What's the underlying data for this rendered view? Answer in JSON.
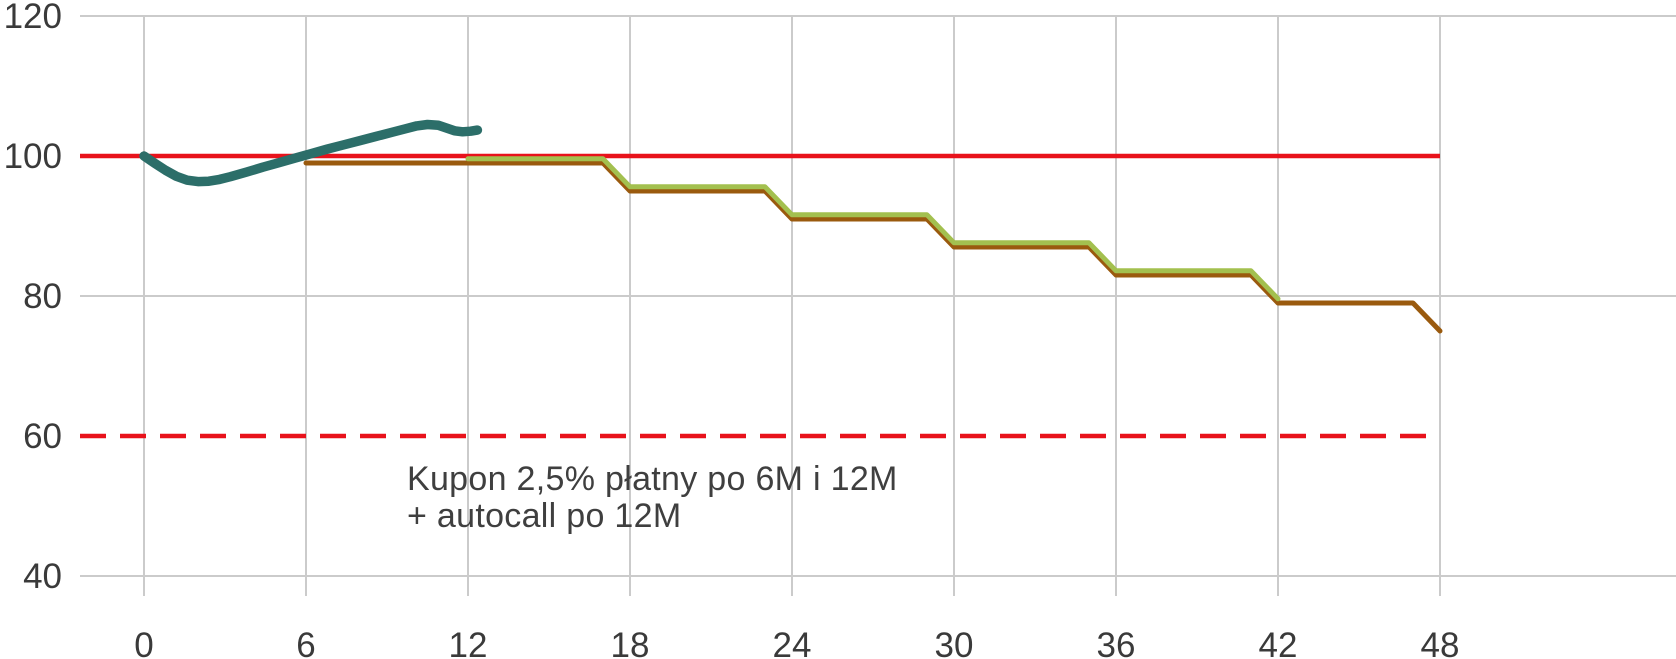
{
  "chart_data": {
    "type": "line",
    "title": "",
    "xlabel": "",
    "ylabel": "",
    "x_axis": {
      "unit": "months",
      "ticks": [
        0,
        6,
        12,
        18,
        24,
        30,
        36,
        42,
        48
      ],
      "range": [
        0,
        48
      ]
    },
    "y_axis": {
      "ticks": [
        120,
        100,
        80,
        60,
        40
      ],
      "range": [
        40,
        120
      ],
      "gridline_values": [
        120,
        80,
        40
      ]
    },
    "grid": true,
    "legend": "none",
    "reference_lines": [
      {
        "name": "barrier-100",
        "value": 100,
        "style": "solid",
        "color": "#e8121b",
        "width": 4.5
      },
      {
        "name": "barrier-60",
        "value": 60,
        "style": "dashed",
        "color": "#e8121b",
        "width": 4.5,
        "dash": [
          26,
          14
        ]
      }
    ],
    "series": [
      {
        "name": "scenario-path-brown",
        "color": "#9a5a0e",
        "stroke_width": 5,
        "points": [
          [
            6,
            99
          ],
          [
            17,
            99
          ],
          [
            18,
            95
          ],
          [
            23,
            95
          ],
          [
            24,
            91
          ],
          [
            29,
            91
          ],
          [
            30,
            87
          ],
          [
            35,
            87
          ],
          [
            36,
            83
          ],
          [
            41,
            83
          ],
          [
            42,
            79
          ],
          [
            47,
            79
          ],
          [
            48,
            75
          ]
        ]
      },
      {
        "name": "scenario-path-green",
        "color": "#a3c04f",
        "stroke_width": 5,
        "points": [
          [
            12,
            99.6
          ],
          [
            17,
            99.6
          ],
          [
            18,
            95.6
          ],
          [
            23,
            95.6
          ],
          [
            24,
            91.6
          ],
          [
            29,
            91.6
          ],
          [
            30,
            87.6
          ],
          [
            35,
            87.6
          ],
          [
            36,
            83.6
          ],
          [
            41,
            83.6
          ],
          [
            42,
            79.6
          ]
        ]
      },
      {
        "name": "underlying-price-path",
        "color": "#2c6e69",
        "stroke_width": 9.5,
        "points": [
          [
            0,
            100
          ],
          [
            0.4,
            98.95
          ],
          [
            0.8,
            97.95
          ],
          [
            1.2,
            97.1
          ],
          [
            1.6,
            96.55
          ],
          [
            2.0,
            96.35
          ],
          [
            2.4,
            96.4
          ],
          [
            2.8,
            96.65
          ],
          [
            3.2,
            97.05
          ],
          [
            3.8,
            97.7
          ],
          [
            4.4,
            98.4
          ],
          [
            5.0,
            99.05
          ],
          [
            5.6,
            99.7
          ],
          [
            6.2,
            100.35
          ],
          [
            6.8,
            101.0
          ],
          [
            7.4,
            101.6
          ],
          [
            8.0,
            102.2
          ],
          [
            8.6,
            102.8
          ],
          [
            9.2,
            103.4
          ],
          [
            9.7,
            103.9
          ],
          [
            10.1,
            104.3
          ],
          [
            10.5,
            104.5
          ],
          [
            10.9,
            104.4
          ],
          [
            11.2,
            104.0
          ],
          [
            11.5,
            103.6
          ],
          [
            11.8,
            103.45
          ],
          [
            12.1,
            103.55
          ],
          [
            12.35,
            103.7
          ]
        ]
      }
    ],
    "annotation": {
      "text_lines": [
        "Kupon 2,5% płatny po 6M i 12M",
        "+ autocall po 12M"
      ]
    },
    "colors": {
      "grid": "#cbcbcb",
      "tick_text": "#3a3a3a",
      "annotation_text": "#3f3f3f",
      "background": "#ffffff"
    }
  }
}
